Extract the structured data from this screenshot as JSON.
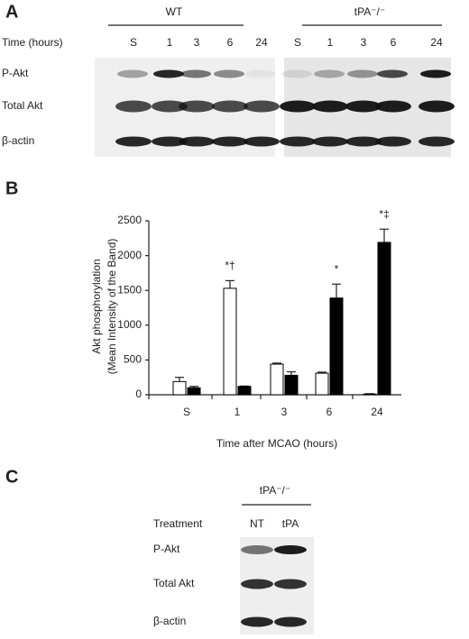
{
  "panel_a": {
    "label": "A",
    "time_label": "Time (hours)",
    "groups": [
      {
        "name": "WT",
        "times": [
          "S",
          "1",
          "3",
          "6",
          "24"
        ]
      },
      {
        "name": "tPA⁻/⁻",
        "times": [
          "S",
          "1",
          "3",
          "6",
          "24"
        ]
      }
    ],
    "rows": [
      "P-Akt",
      "Total Akt",
      "β-actin"
    ]
  },
  "panel_b": {
    "label": "B"
  },
  "chart_data": {
    "type": "bar",
    "ylabel": [
      "Akt phosphorylation",
      "(Mean Intensity of the Band)"
    ],
    "xlabel": "Time after MCAO (hours)",
    "categories": [
      "S",
      "1",
      "3",
      "6",
      "24"
    ],
    "series": [
      {
        "color": "#ffffff",
        "values": [
          190,
          1530,
          440,
          310,
          10
        ],
        "errors": [
          60,
          110,
          15,
          15,
          5
        ],
        "annotations": [
          null,
          "*†",
          null,
          null,
          null
        ]
      },
      {
        "color": "#000000",
        "values": [
          100,
          120,
          280,
          1390,
          2190
        ],
        "errors": [
          20,
          5,
          50,
          200,
          190
        ],
        "annotations": [
          null,
          null,
          null,
          "*",
          "*‡"
        ]
      }
    ],
    "ylim": [
      0,
      2500
    ],
    "yticks": [
      0,
      500,
      1000,
      1500,
      2000,
      2500
    ]
  },
  "panel_c": {
    "label": "C",
    "group": "tPA⁻/⁻",
    "treatment_label": "Treatment",
    "treatments": [
      "NT",
      "tPA"
    ],
    "rows": [
      "P-Akt",
      "Total Akt",
      "β-actin"
    ]
  }
}
